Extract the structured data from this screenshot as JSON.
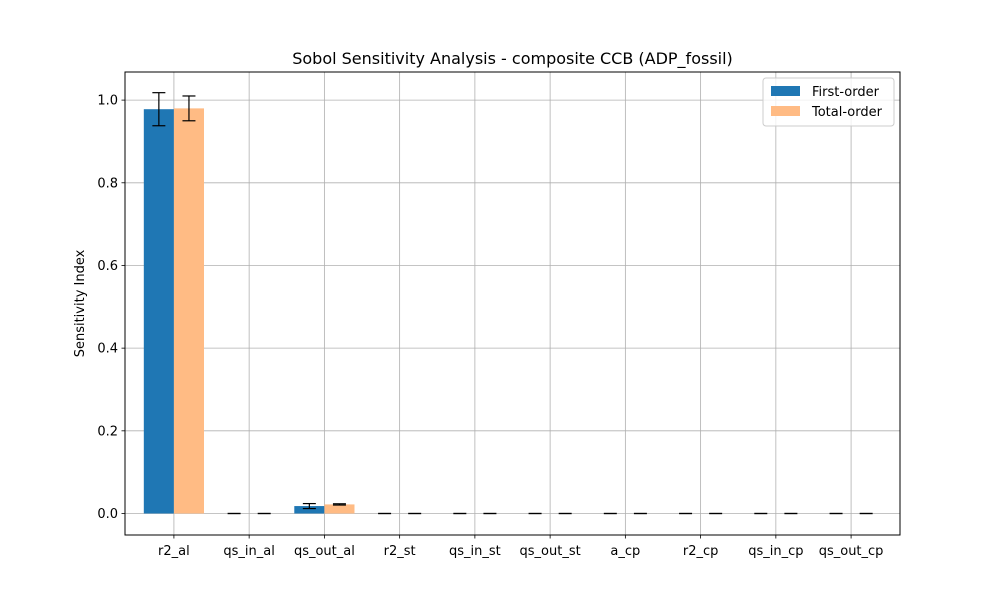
{
  "chart_data": {
    "type": "bar",
    "title": "Sobol Sensitivity Analysis - composite CCB (ADP_fossil)",
    "xlabel": "",
    "ylabel": "Sensitivity Index",
    "categories": [
      "r2_al",
      "qs_in_al",
      "qs_out_al",
      "r2_st",
      "qs_in_st",
      "qs_out_st",
      "a_cp",
      "r2_cp",
      "qs_in_cp",
      "qs_out_cp"
    ],
    "series": [
      {
        "name": "First-order",
        "color": "#1f77b4",
        "values": [
          0.978,
          0.0,
          0.018,
          0.0,
          0.0,
          0.0,
          0.0,
          0.0,
          0.0,
          0.0
        ],
        "errors": [
          0.04,
          0.0,
          0.006,
          0.0,
          0.0,
          0.0,
          0.0,
          0.0,
          0.0,
          0.0
        ]
      },
      {
        "name": "Total-order",
        "color": "#ffbb84",
        "values": [
          0.98,
          0.0,
          0.022,
          0.0,
          0.0,
          0.0,
          0.0,
          0.0,
          0.0,
          0.0
        ],
        "errors": [
          0.03,
          0.0,
          0.0015,
          0.0,
          0.0,
          0.0,
          0.0,
          0.0,
          0.0,
          0.0
        ]
      }
    ],
    "ylim": [
      -0.052,
      1.068
    ],
    "yticks": [
      0.0,
      0.2,
      0.4,
      0.6,
      0.8,
      1.0
    ],
    "ytick_labels": [
      "0.0",
      "0.2",
      "0.4",
      "0.6",
      "0.8",
      "1.0"
    ],
    "grid": true,
    "legend_position": "top-right"
  }
}
